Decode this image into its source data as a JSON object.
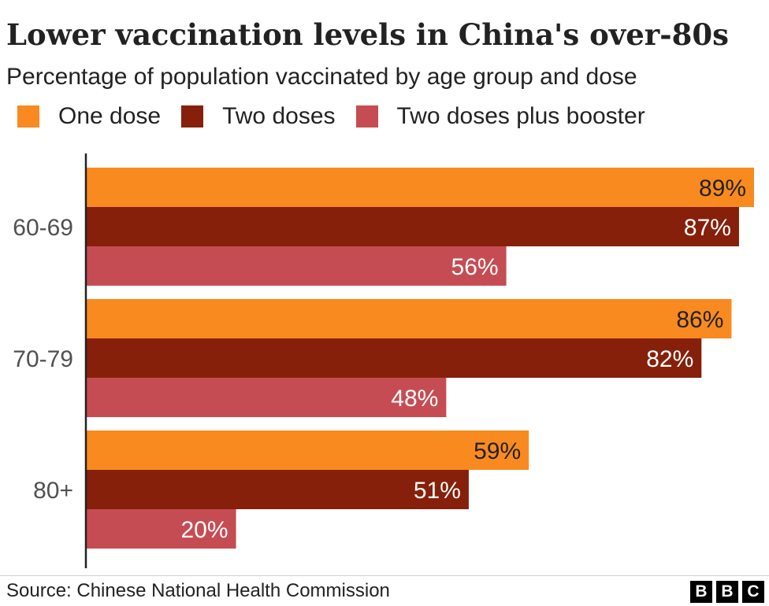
{
  "title": "Lower vaccination levels in China's over-80s",
  "subtitle": "Percentage of population vaccinated by age group and dose",
  "source": "Source: Chinese National Health Commission",
  "logo": [
    "B",
    "B",
    "C"
  ],
  "colors": {
    "one_dose": "#F98A20",
    "two_doses": "#86200A",
    "booster": "#C64C53",
    "axis": "#222222",
    "dark_label": "#222222",
    "light_label": "#ffffff"
  },
  "chart_data": {
    "type": "bar",
    "orientation": "horizontal",
    "title": "Lower vaccination levels in China's over-80s",
    "subtitle": "Percentage of population vaccinated by age group and dose",
    "categories": [
      "60-69",
      "70-79",
      "80+"
    ],
    "series": [
      {
        "name": "One dose",
        "color": "#F98A20",
        "values": [
          89,
          86,
          59
        ],
        "labels": [
          "89%",
          "86%",
          "59%"
        ]
      },
      {
        "name": "Two doses",
        "color": "#86200A",
        "values": [
          87,
          82,
          51
        ],
        "labels": [
          "87%",
          "82%",
          "51%"
        ]
      },
      {
        "name": "Two doses plus booster",
        "color": "#C64C53",
        "values": [
          56,
          48,
          20
        ],
        "labels": [
          "56%",
          "48%",
          "20%"
        ]
      }
    ],
    "xlim": [
      0,
      89
    ],
    "grid": false,
    "legend": "top-left",
    "value_labels": "inside-end"
  }
}
